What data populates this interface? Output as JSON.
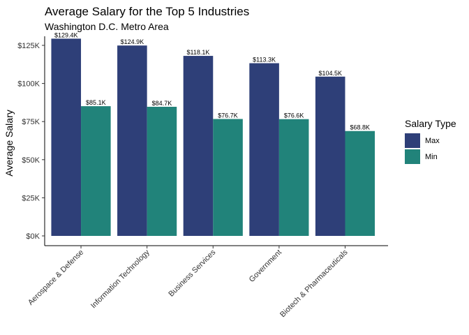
{
  "chart_data": {
    "type": "bar",
    "title": "Average Salary for the Top 5 Industries",
    "subtitle": "Washington D.C. Metro Area",
    "xlabel": "",
    "ylabel": "Average Salary",
    "categories": [
      "Aerospace & Defense",
      "Information Technology",
      "Business Services",
      "Government",
      "Biotech & Pharmaceuticals"
    ],
    "series": [
      {
        "name": "Max",
        "color": "#2e3f78",
        "values": [
          129.4,
          124.9,
          118.1,
          113.3,
          104.5
        ],
        "labels": [
          "$129.4K",
          "$124.9K",
          "$118.1K",
          "$113.3K",
          "$104.5K"
        ]
      },
      {
        "name": "Min",
        "color": "#21837a",
        "values": [
          85.1,
          84.7,
          76.7,
          76.6,
          68.8
        ],
        "labels": [
          "$85.1K",
          "$84.7K",
          "$76.7K",
          "$76.6K",
          "$68.8K"
        ]
      }
    ],
    "ylim": [
      0,
      135
    ],
    "yticks": [
      0,
      25,
      50,
      75,
      100,
      125
    ],
    "ytick_labels": [
      "$0K",
      "$25K",
      "$50K",
      "$75K",
      "$100K",
      "$125K"
    ],
    "legend": {
      "title": "Salary Type",
      "position": "right"
    },
    "grid": false
  }
}
